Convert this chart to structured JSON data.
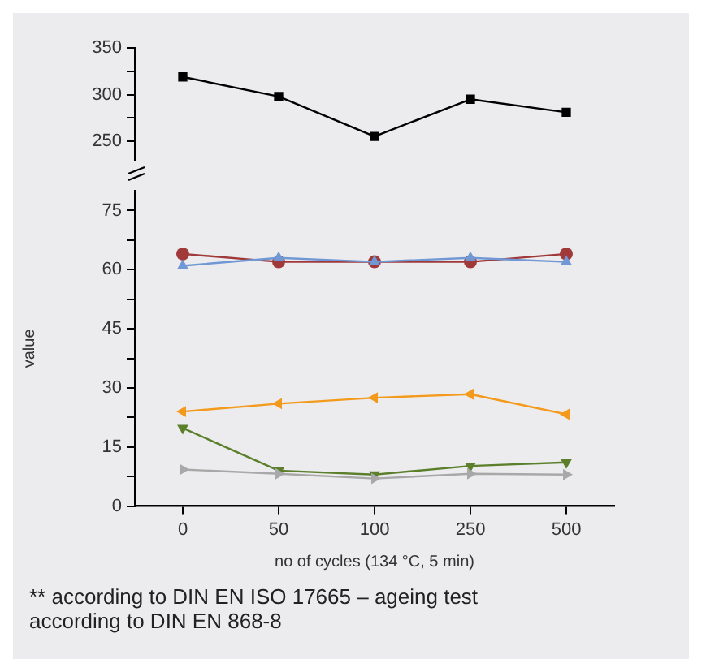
{
  "chart_data": [
    {
      "type": "line",
      "categories": [
        "0",
        "50",
        "100",
        "250",
        "500"
      ],
      "ylim": [
        230,
        350
      ],
      "yticks": [
        250,
        {
          "value": 275,
          "label": null
        },
        300,
        {
          "value": 325,
          "label": null
        },
        350
      ],
      "tick_labels": "y",
      "grid": false,
      "legend": false,
      "series": [
        {
          "color": "#000000",
          "marker": "square",
          "values": [
            319,
            298,
            255,
            295,
            281
          ]
        }
      ]
    },
    {
      "type": "line",
      "categories": [
        "0",
        "50",
        "100",
        "250",
        "500"
      ],
      "xlabel": "no of cycles (134 °C, 5 min)",
      "ylabel": "value",
      "ylim": [
        0,
        80
      ],
      "yticks": [
        0,
        {
          "value": 7.5,
          "label": null
        },
        15,
        {
          "value": 22.5,
          "label": null
        },
        30,
        {
          "value": 37.5,
          "label": null
        },
        45,
        {
          "value": 52.5,
          "label": null
        },
        60,
        {
          "value": 67.5,
          "label": null
        },
        75
      ],
      "grid": false,
      "legend": false,
      "annotations": [
        "** according to DIN EN ISO 17665 – ageing test according to DIN EN 868-8"
      ],
      "series": [
        {
          "color": "#a0393a",
          "marker": "circle",
          "values": [
            64,
            62,
            62,
            62,
            64
          ]
        },
        {
          "color": "#6f98d4",
          "marker": "triangle",
          "values": [
            61,
            63,
            62,
            63,
            62
          ]
        },
        {
          "color": "#f39a1d",
          "marker": "triangle-left",
          "values": [
            24,
            26,
            27.5,
            28.4,
            23.3
          ]
        },
        {
          "color": "#5b7f2a",
          "marker": "triangle-down",
          "values": [
            19.8,
            9,
            8,
            10.2,
            11.1
          ]
        },
        {
          "color": "#a8a8a8",
          "marker": "triangle-right",
          "values": [
            9.3,
            8.2,
            7,
            8.2,
            8
          ]
        }
      ]
    }
  ]
}
